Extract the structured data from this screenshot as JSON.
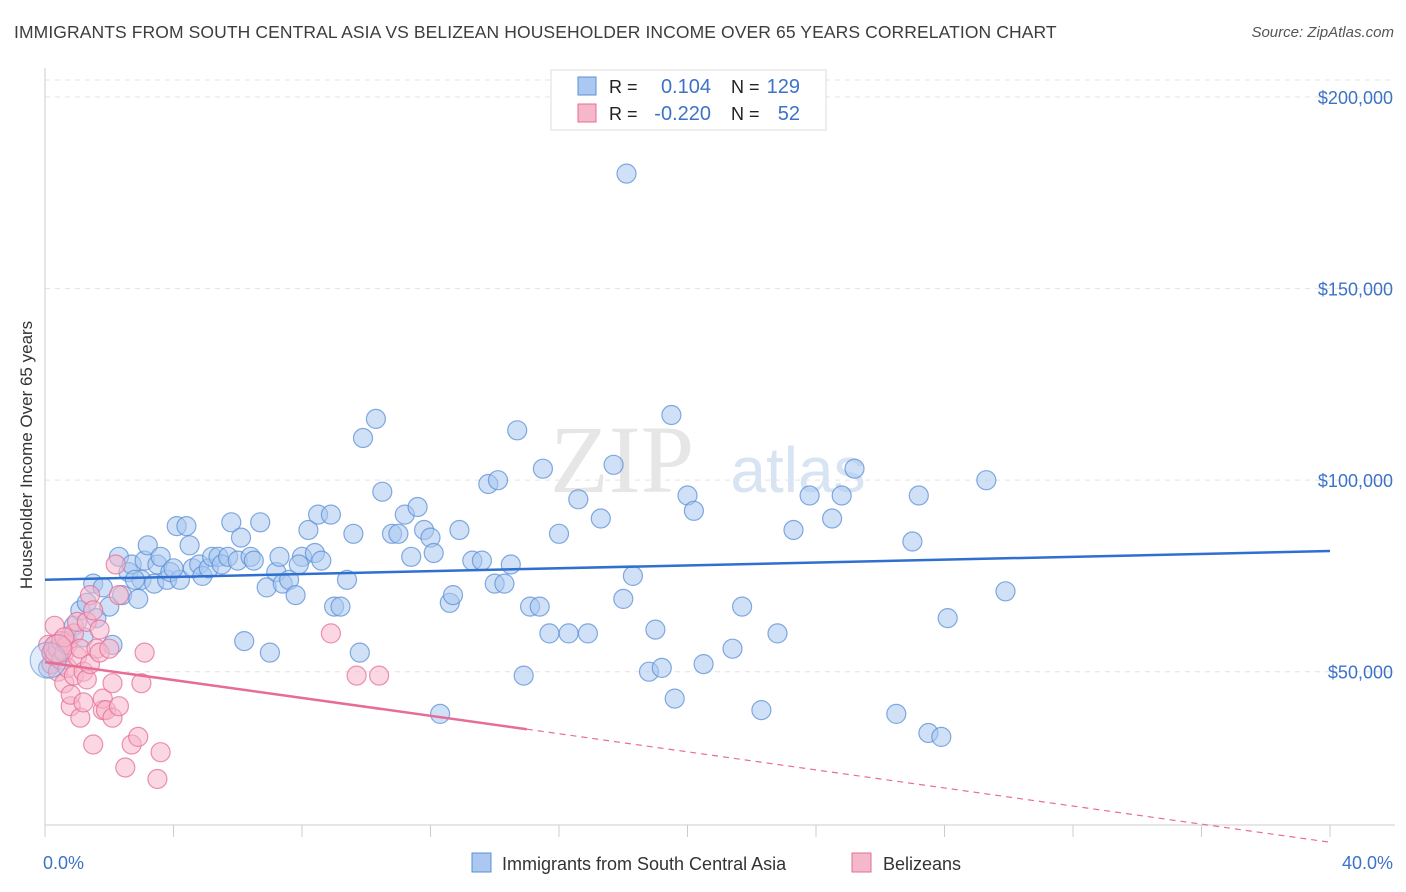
{
  "title": "IMMIGRANTS FROM SOUTH CENTRAL ASIA VS BELIZEAN HOUSEHOLDER INCOME OVER 65 YEARS CORRELATION CHART",
  "source": "Source: ZipAtlas.com",
  "watermark": {
    "zip": "ZIP",
    "atlas": "atlas"
  },
  "colors": {
    "blue": "#5b8fd6",
    "blue_fill": "#aac8f0",
    "pink": "#e66d97",
    "pink_fill": "#f5b7ca",
    "tick_text": "#3d72c9",
    "grid": "#e3e3e3"
  },
  "legend": {
    "rows": [
      {
        "r_label": "R =",
        "r_value": "0.104",
        "n_label": "N =",
        "n_value": "129"
      },
      {
        "r_label": "R =",
        "r_value": "-0.220",
        "n_label": "N =",
        "n_value": "52"
      }
    ]
  },
  "bottom_legend": [
    "Immigrants from South Central Asia",
    "Belizeans"
  ],
  "chart_data": {
    "type": "scatter",
    "title": "IMMIGRANTS FROM SOUTH CENTRAL ASIA VS BELIZEAN HOUSEHOLDER INCOME OVER 65 YEARS CORRELATION CHART",
    "xlabel": "",
    "ylabel": "Householder Income Over 65 years",
    "xlim": [
      0,
      40
    ],
    "ylim": [
      5000,
      210000
    ],
    "x_tick_labels": [
      "0.0%",
      "40.0%"
    ],
    "y_ticks": [
      50000,
      100000,
      150000,
      200000
    ],
    "y_tick_labels": [
      "$50,000",
      "$100,000",
      "$150,000",
      "$200,000"
    ],
    "grid": true,
    "legend_placement": "top-center",
    "series": [
      {
        "name": "Immigrants from South Central Asia",
        "color": "#5b8fd6",
        "trend": {
          "x": [
            0,
            40
          ],
          "y": [
            74000,
            81500
          ]
        },
        "points": [
          [
            0.1,
            51000
          ],
          [
            0.2,
            55000
          ],
          [
            0.3,
            57000
          ],
          [
            0.5,
            56000
          ],
          [
            0.7,
            58000
          ],
          [
            0.9,
            62000
          ],
          [
            1.1,
            66000
          ],
          [
            1.3,
            68000
          ],
          [
            1.5,
            73000
          ],
          [
            1.6,
            64000
          ],
          [
            1.8,
            72000
          ],
          [
            2.0,
            67000
          ],
          [
            2.1,
            57000
          ],
          [
            2.3,
            80000
          ],
          [
            2.4,
            70000
          ],
          [
            2.6,
            76000
          ],
          [
            2.7,
            78000
          ],
          [
            2.9,
            69000
          ],
          [
            3.0,
            74000
          ],
          [
            3.1,
            79000
          ],
          [
            3.2,
            83000
          ],
          [
            3.4,
            73000
          ],
          [
            3.5,
            78000
          ],
          [
            3.6,
            80000
          ],
          [
            3.8,
            74000
          ],
          [
            3.9,
            76000
          ],
          [
            4.1,
            88000
          ],
          [
            4.2,
            74000
          ],
          [
            4.4,
            88000
          ],
          [
            4.5,
            83000
          ],
          [
            4.6,
            77000
          ],
          [
            4.8,
            78000
          ],
          [
            4.9,
            75000
          ],
          [
            5.1,
            77000
          ],
          [
            5.2,
            80000
          ],
          [
            5.4,
            80000
          ],
          [
            5.5,
            78000
          ],
          [
            5.7,
            80000
          ],
          [
            5.8,
            89000
          ],
          [
            6.0,
            79000
          ],
          [
            6.1,
            85000
          ],
          [
            6.2,
            58000
          ],
          [
            6.4,
            80000
          ],
          [
            6.5,
            79000
          ],
          [
            6.7,
            89000
          ],
          [
            6.9,
            72000
          ],
          [
            7.0,
            55000
          ],
          [
            7.2,
            76000
          ],
          [
            7.3,
            80000
          ],
          [
            7.4,
            73000
          ],
          [
            7.6,
            74000
          ],
          [
            7.8,
            70000
          ],
          [
            8.0,
            80000
          ],
          [
            8.2,
            87000
          ],
          [
            8.4,
            81000
          ],
          [
            8.5,
            91000
          ],
          [
            8.6,
            79000
          ],
          [
            8.9,
            91000
          ],
          [
            9.0,
            67000
          ],
          [
            9.2,
            67000
          ],
          [
            9.4,
            74000
          ],
          [
            9.6,
            86000
          ],
          [
            9.8,
            55000
          ],
          [
            9.9,
            111000
          ],
          [
            10.3,
            116000
          ],
          [
            10.5,
            97000
          ],
          [
            10.8,
            86000
          ],
          [
            11.0,
            86000
          ],
          [
            11.2,
            91000
          ],
          [
            11.4,
            80000
          ],
          [
            11.6,
            93000
          ],
          [
            11.8,
            87000
          ],
          [
            12.0,
            85000
          ],
          [
            12.3,
            39000
          ],
          [
            12.6,
            68000
          ],
          [
            12.7,
            70000
          ],
          [
            12.9,
            87000
          ],
          [
            13.3,
            79000
          ],
          [
            13.6,
            79000
          ],
          [
            13.8,
            99000
          ],
          [
            14.0,
            73000
          ],
          [
            14.1,
            100000
          ],
          [
            14.3,
            73000
          ],
          [
            14.5,
            78000
          ],
          [
            14.7,
            113000
          ],
          [
            14.9,
            49000
          ],
          [
            15.1,
            67000
          ],
          [
            15.4,
            67000
          ],
          [
            15.5,
            103000
          ],
          [
            15.7,
            60000
          ],
          [
            16.0,
            86000
          ],
          [
            16.3,
            60000
          ],
          [
            16.6,
            95000
          ],
          [
            16.9,
            60000
          ],
          [
            17.3,
            90000
          ],
          [
            17.7,
            104000
          ],
          [
            18.0,
            69000
          ],
          [
            18.3,
            75000
          ],
          [
            18.8,
            50000
          ],
          [
            19.0,
            61000
          ],
          [
            19.5,
            117000
          ],
          [
            18.1,
            180000
          ],
          [
            19.2,
            51000
          ],
          [
            19.6,
            43000
          ],
          [
            20.0,
            96000
          ],
          [
            20.2,
            92000
          ],
          [
            20.5,
            52000
          ],
          [
            21.4,
            56000
          ],
          [
            21.7,
            67000
          ],
          [
            22.3,
            40000
          ],
          [
            22.8,
            60000
          ],
          [
            23.3,
            87000
          ],
          [
            23.8,
            96000
          ],
          [
            24.5,
            90000
          ],
          [
            24.8,
            96000
          ],
          [
            25.2,
            103000
          ],
          [
            26.5,
            39000
          ],
          [
            27.0,
            84000
          ],
          [
            27.2,
            96000
          ],
          [
            27.5,
            34000
          ],
          [
            27.9,
            33000
          ],
          [
            28.1,
            64000
          ],
          [
            29.3,
            100000
          ],
          [
            29.9,
            71000
          ],
          [
            1.2,
            59000
          ],
          [
            2.8,
            74000
          ],
          [
            4.0,
            77000
          ],
          [
            7.9,
            78000
          ],
          [
            12.1,
            81000
          ]
        ]
      },
      {
        "name": "Belizeans",
        "color": "#e66d97",
        "trend": {
          "x": [
            0,
            15
          ],
          "y": [
            52500,
            35000
          ],
          "dashed_to": {
            "x": 40,
            "y": 5500
          }
        },
        "points": [
          [
            0.1,
            57000
          ],
          [
            0.2,
            52000
          ],
          [
            0.2,
            55000
          ],
          [
            0.3,
            54000
          ],
          [
            0.3,
            62000
          ],
          [
            0.4,
            56000
          ],
          [
            0.4,
            50000
          ],
          [
            0.5,
            53000
          ],
          [
            0.5,
            58000
          ],
          [
            0.6,
            55000
          ],
          [
            0.6,
            47000
          ],
          [
            0.7,
            51000
          ],
          [
            0.7,
            57000
          ],
          [
            0.8,
            41000
          ],
          [
            0.8,
            44000
          ],
          [
            0.9,
            49000
          ],
          [
            0.9,
            60000
          ],
          [
            1.0,
            63000
          ],
          [
            1.0,
            54000
          ],
          [
            1.1,
            56000
          ],
          [
            1.1,
            38000
          ],
          [
            1.2,
            42000
          ],
          [
            1.2,
            50000
          ],
          [
            1.3,
            63000
          ],
          [
            1.3,
            48000
          ],
          [
            1.4,
            52000
          ],
          [
            1.4,
            70000
          ],
          [
            1.5,
            66000
          ],
          [
            1.5,
            31000
          ],
          [
            1.6,
            56000
          ],
          [
            1.7,
            55000
          ],
          [
            1.8,
            40000
          ],
          [
            1.8,
            43000
          ],
          [
            1.9,
            40000
          ],
          [
            2.0,
            56000
          ],
          [
            2.1,
            38000
          ],
          [
            2.1,
            47000
          ],
          [
            2.2,
            78000
          ],
          [
            2.3,
            70000
          ],
          [
            2.3,
            41000
          ],
          [
            2.5,
            25000
          ],
          [
            2.7,
            31000
          ],
          [
            2.9,
            33000
          ],
          [
            3.0,
            47000
          ],
          [
            3.1,
            55000
          ],
          [
            3.5,
            22000
          ],
          [
            3.6,
            29000
          ],
          [
            8.9,
            60000
          ],
          [
            9.7,
            49000
          ],
          [
            10.4,
            49000
          ],
          [
            0.6,
            59000
          ],
          [
            1.7,
            61000
          ]
        ]
      }
    ]
  }
}
